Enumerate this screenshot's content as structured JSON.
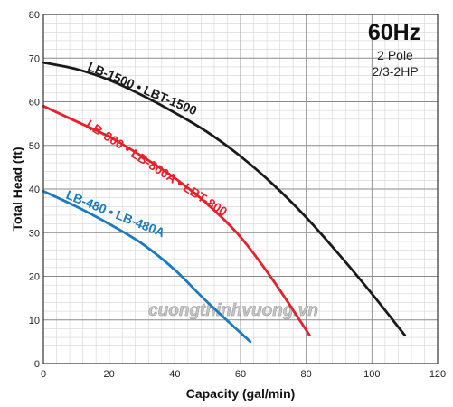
{
  "chart_data": {
    "type": "line",
    "xlabel": "Capacity (gal/min)",
    "ylabel": "Total Head (ft)",
    "xlim": [
      0,
      120
    ],
    "ylim": [
      0,
      80
    ],
    "x_ticks": [
      "0",
      "20",
      "40",
      "60",
      "80",
      "100",
      "120"
    ],
    "y_ticks": [
      "0",
      "10",
      "20",
      "30",
      "40",
      "50",
      "60",
      "70",
      "80"
    ],
    "grid": true,
    "info_box": {
      "frequency": "60Hz",
      "poles": "2 Pole",
      "power": "2/3-2HP"
    },
    "series": [
      {
        "name": "LB-1500 • LBT-1500",
        "color": "#1a1a1a",
        "x": [
          0,
          10,
          20,
          30,
          40,
          50,
          60,
          70,
          80,
          90,
          100,
          110
        ],
        "y": [
          69,
          67.5,
          65,
          61.5,
          57.5,
          53,
          47.5,
          41,
          33.5,
          25,
          16,
          6.5
        ]
      },
      {
        "name": "LB-800 • LB-800A • LBT-800",
        "color": "#e8202a",
        "x": [
          0,
          10,
          20,
          30,
          40,
          50,
          60,
          70,
          81
        ],
        "y": [
          59,
          55.5,
          52,
          47.5,
          42.5,
          36.5,
          29,
          19,
          6.5
        ]
      },
      {
        "name": "LB-480 • LB-480A",
        "color": "#1a7bbf",
        "x": [
          0,
          10,
          20,
          30,
          40,
          50,
          63
        ],
        "y": [
          39.5,
          36,
          32,
          27.5,
          21.5,
          14,
          5
        ]
      }
    ],
    "watermark": "cuongthinhvuong.vn"
  }
}
